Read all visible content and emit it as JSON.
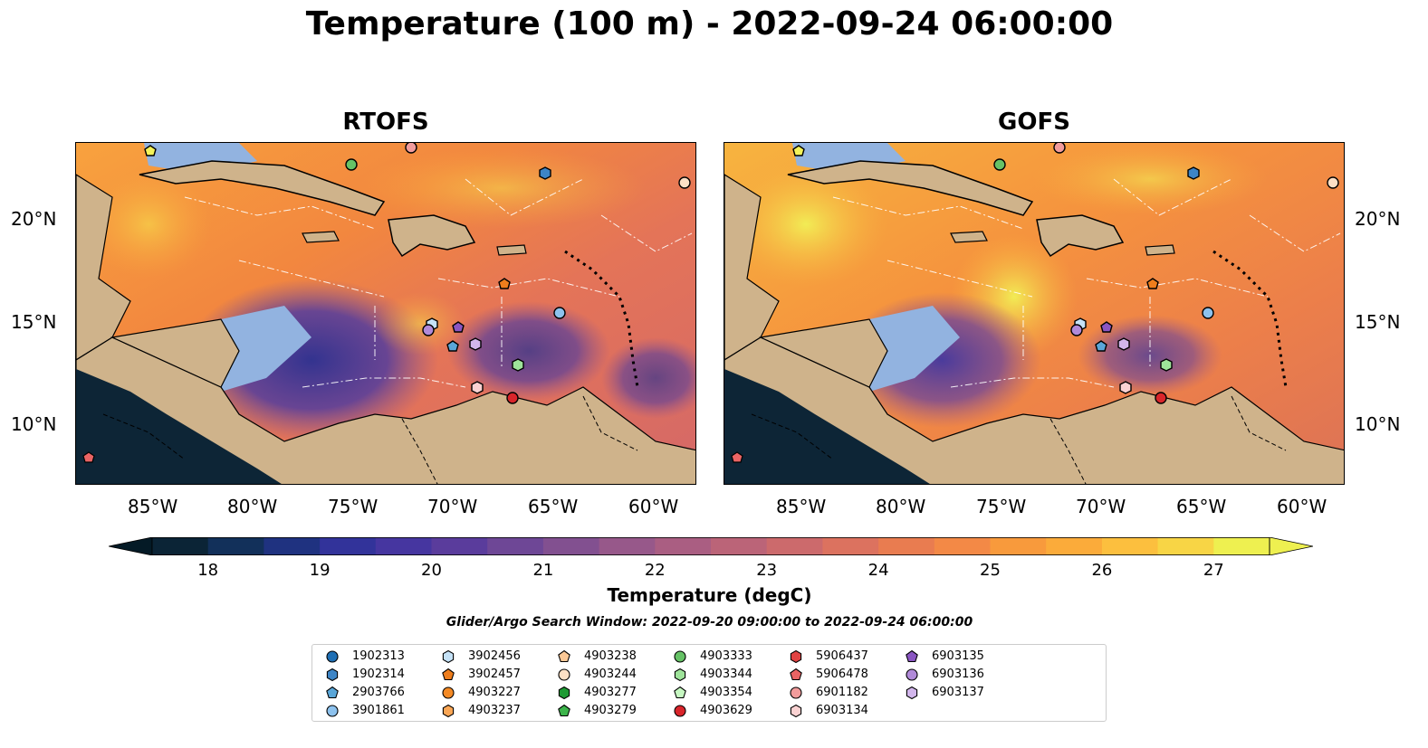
{
  "title": "Temperature (100 m) - 2022-09-24 06:00:00",
  "panels": [
    {
      "title": "RTOFS"
    },
    {
      "title": "GOFS"
    }
  ],
  "lon_ticks": [
    "85°W",
    "80°W",
    "75°W",
    "70°W",
    "65°W",
    "60°W"
  ],
  "lat_ticks": [
    "20°N",
    "15°N",
    "10°N"
  ],
  "colorbar": {
    "label": "Temperature (degC)",
    "min": 17.5,
    "max": 27.5,
    "ticks": [
      "18",
      "19",
      "20",
      "21",
      "22",
      "23",
      "24",
      "25",
      "26",
      "27"
    ],
    "colors": [
      "#0b2436",
      "#12305a",
      "#1f3280",
      "#32339a",
      "#4636a0",
      "#5a3c9c",
      "#6e4796",
      "#825090",
      "#97588a",
      "#aa5e82",
      "#bb6478",
      "#cc6a6c",
      "#dc725f",
      "#e97c50",
      "#f38946",
      "#f89a3c",
      "#fbab3a",
      "#fcbf3e",
      "#f8d545",
      "#eef050"
    ],
    "extend_low": "#041a26",
    "extend_high": "#eef050"
  },
  "search_window": "Glider/Argo Search Window: 2022-09-20 09:00:00 to 2022-09-24 06:00:00",
  "map_colors": {
    "land": "#cfb38b",
    "shelf": "#92b3e0",
    "pacific": "#0d2536",
    "border": "#000000"
  },
  "legend": [
    {
      "id": "1902313",
      "marker": "circle",
      "color": "#1f6fb4"
    },
    {
      "id": "1902314",
      "marker": "hexagon",
      "color": "#3d85c6"
    },
    {
      "id": "2903766",
      "marker": "pentagon",
      "color": "#5aa6d8"
    },
    {
      "id": "3901861",
      "marker": "circle",
      "color": "#8dc2ee"
    },
    {
      "id": "3902456",
      "marker": "hexagon",
      "color": "#c5e2f7"
    },
    {
      "id": "3902457",
      "marker": "pentagon",
      "color": "#ee7d1c"
    },
    {
      "id": "4903227",
      "marker": "circle",
      "color": "#f48a25"
    },
    {
      "id": "4903237",
      "marker": "hexagon",
      "color": "#f9a655"
    },
    {
      "id": "4903238",
      "marker": "pentagon",
      "color": "#fbc896"
    },
    {
      "id": "4903244",
      "marker": "circle",
      "color": "#fde0c5"
    },
    {
      "id": "4903277",
      "marker": "hexagon",
      "color": "#1e9a34"
    },
    {
      "id": "4903279",
      "marker": "pentagon",
      "color": "#3cb44b"
    },
    {
      "id": "4903333",
      "marker": "circle",
      "color": "#66c266"
    },
    {
      "id": "4903344",
      "marker": "hexagon",
      "color": "#9ee39a"
    },
    {
      "id": "4903354",
      "marker": "pentagon",
      "color": "#c6f7c1"
    },
    {
      "id": "4903629",
      "marker": "circle",
      "color": "#d9252b"
    },
    {
      "id": "5906437",
      "marker": "hexagon",
      "color": "#e04343"
    },
    {
      "id": "5906478",
      "marker": "pentagon",
      "color": "#ea6464"
    },
    {
      "id": "6901182",
      "marker": "circle",
      "color": "#f29c9c"
    },
    {
      "id": "6903134",
      "marker": "hexagon",
      "color": "#fad2d2"
    },
    {
      "id": "6903135",
      "marker": "pentagon",
      "color": "#8a56c2"
    },
    {
      "id": "6903136",
      "marker": "circle",
      "color": "#b18ad9"
    },
    {
      "id": "6903137",
      "marker": "hexagon",
      "color": "#d2b6ec"
    }
  ]
}
